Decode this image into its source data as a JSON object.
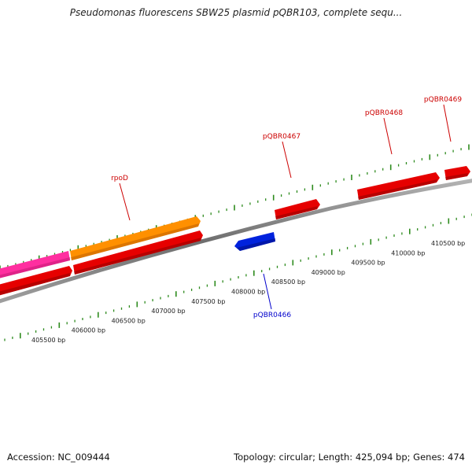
{
  "title": "Pseudomonas fluorescens SBW25 plasmid pQBR103, complete sequ...",
  "footer": {
    "accession": "Accession: NC_009444",
    "stats": "Topology: circular; Length: 425,094 bp; Genes: 474"
  },
  "colors": {
    "background": "#ffffff",
    "backbone": "#8c8c8c",
    "tick": "#2e8b1e",
    "forward_gene": "#e60000",
    "reverse_gene": "#0022dd",
    "rpoD_gene": "#ff9000",
    "pink_gene": "#ff2fa0",
    "forward_label": "#cc0000",
    "reverse_label": "#0000cc"
  },
  "scale_labels": [
    "405500 bp",
    "406000 bp",
    "406500 bp",
    "407000 bp",
    "407500 bp",
    "408000 bp",
    "408500 bp",
    "409000 bp",
    "409500 bp",
    "410000 bp",
    "410500 bp"
  ],
  "gene_labels": [
    {
      "id": "rpoD",
      "text": "rpoD",
      "strand": "forward"
    },
    {
      "id": "pqbr0466",
      "text": "pQBR0466",
      "strand": "reverse"
    },
    {
      "id": "pqbr0467",
      "text": "pQBR0467",
      "strand": "forward"
    },
    {
      "id": "pqbr0468",
      "text": "pQBR0468",
      "strand": "forward"
    },
    {
      "id": "pqbr0469",
      "text": "pQBR0469",
      "strand": "forward"
    }
  ]
}
